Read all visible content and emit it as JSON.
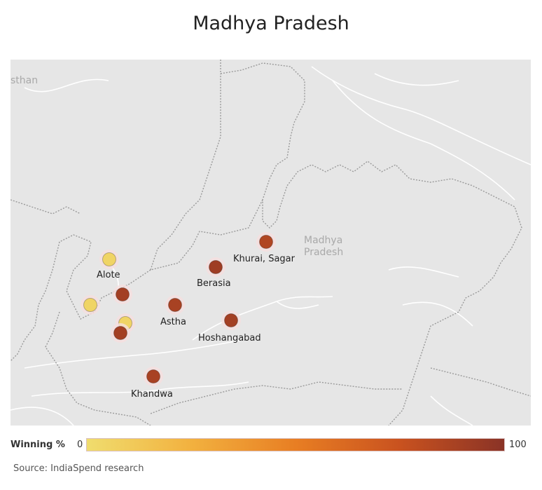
{
  "title": "Madhya Pradesh",
  "map": {
    "region_label_state": "Madhya\nPradesh",
    "region_label_neighbor": "sthan",
    "constituencies": [
      {
        "label": "Alote",
        "winning_pct": 5
      },
      {
        "label": "",
        "winning_pct": 90
      },
      {
        "label": "",
        "winning_pct": 5
      },
      {
        "label": "",
        "winning_pct": 5
      },
      {
        "label": "",
        "winning_pct": 90
      },
      {
        "label": "Berasia",
        "winning_pct": 92
      },
      {
        "label": "Khurai, Sagar",
        "winning_pct": 85
      },
      {
        "label": "Astha",
        "winning_pct": 88
      },
      {
        "label": "Hoshangabad",
        "winning_pct": 90
      },
      {
        "label": "Khandwa",
        "winning_pct": 88
      }
    ]
  },
  "legend": {
    "title": "Winning %",
    "min": "0",
    "max": "100",
    "colors": [
      "#f0dd6e",
      "#f2b13f",
      "#e87e23",
      "#c9521f",
      "#8a3326"
    ]
  },
  "source": "Source: IndiaSpend research"
}
